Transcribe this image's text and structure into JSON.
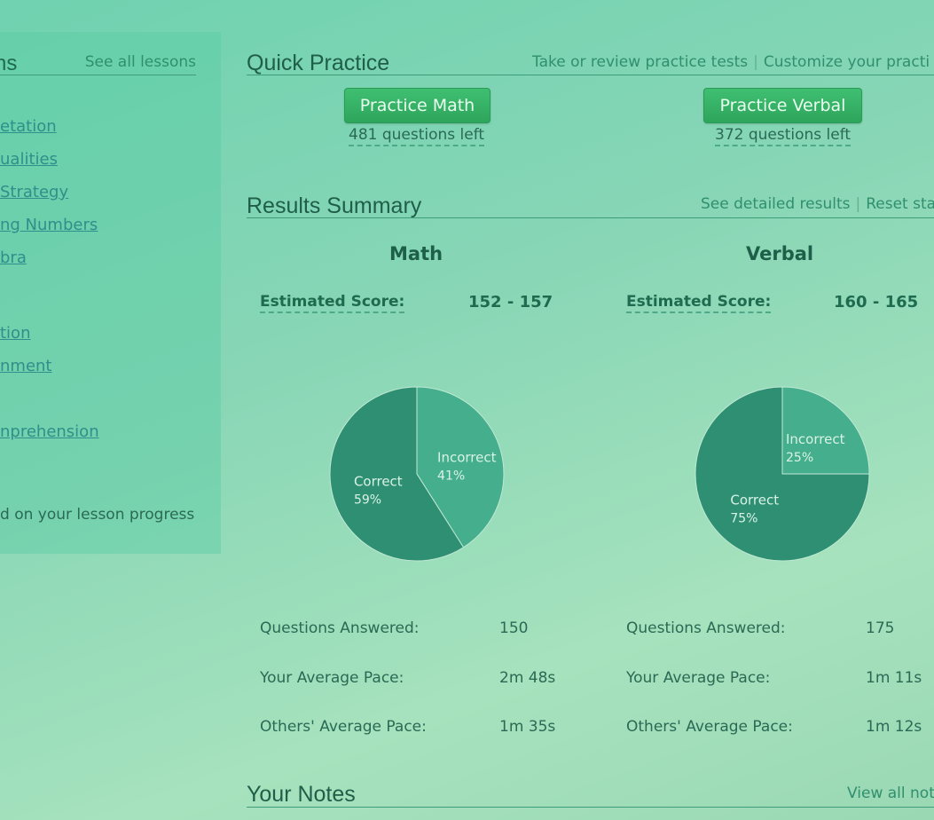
{
  "sidebar": {
    "title": "ns",
    "see_all": "See all lessons",
    "links": [
      "etation",
      "ualities",
      "Strategy",
      "ng Numbers",
      "bra",
      "tion",
      "nment",
      "nprehension"
    ],
    "progress_note": "d on your lesson progress"
  },
  "quick_practice": {
    "title": "Quick Practice",
    "link_take": "Take or review practice tests",
    "separator": "|",
    "link_customize": "Customize your practi",
    "math_button": "Practice Math",
    "math_left": "481 questions left",
    "verbal_button": "Practice Verbal",
    "verbal_left": "372 questions left"
  },
  "results": {
    "title": "Results Summary",
    "link_detailed": "See detailed results",
    "separator": "|",
    "link_reset": "Reset sta",
    "estimated_label": "Estimated Score:",
    "math": {
      "name": "Math",
      "score": "152 - 157",
      "correct_label": "Correct",
      "correct_pct": "59%",
      "incorrect_label": "Incorrect",
      "incorrect_pct": "41%",
      "questions_answered": "150",
      "your_pace": "2m 48s",
      "others_pace": "1m 35s"
    },
    "verbal": {
      "name": "Verbal",
      "score": "160 - 165",
      "correct_label": "Correct",
      "correct_pct": "75%",
      "incorrect_label": "Incorrect",
      "incorrect_pct": "25%",
      "questions_answered": "175",
      "your_pace": "1m 11s",
      "others_pace": "1m 12s"
    },
    "labels": {
      "questions_answered": "Questions Answered:",
      "your_pace": "Your Average Pace:",
      "others_pace": "Others' Average Pace:"
    }
  },
  "notes": {
    "title": "Your Notes",
    "link_view": "View all not"
  },
  "colors": {
    "correct": "#2f8f73",
    "incorrect": "#45ae8c",
    "button": "#35b066"
  },
  "chart_data": [
    {
      "type": "pie",
      "title": "",
      "categories": [
        "Correct",
        "Incorrect"
      ],
      "values": [
        59,
        41
      ]
    },
    {
      "type": "pie",
      "title": "",
      "categories": [
        "Correct",
        "Incorrect"
      ],
      "values": [
        75,
        25
      ]
    }
  ]
}
